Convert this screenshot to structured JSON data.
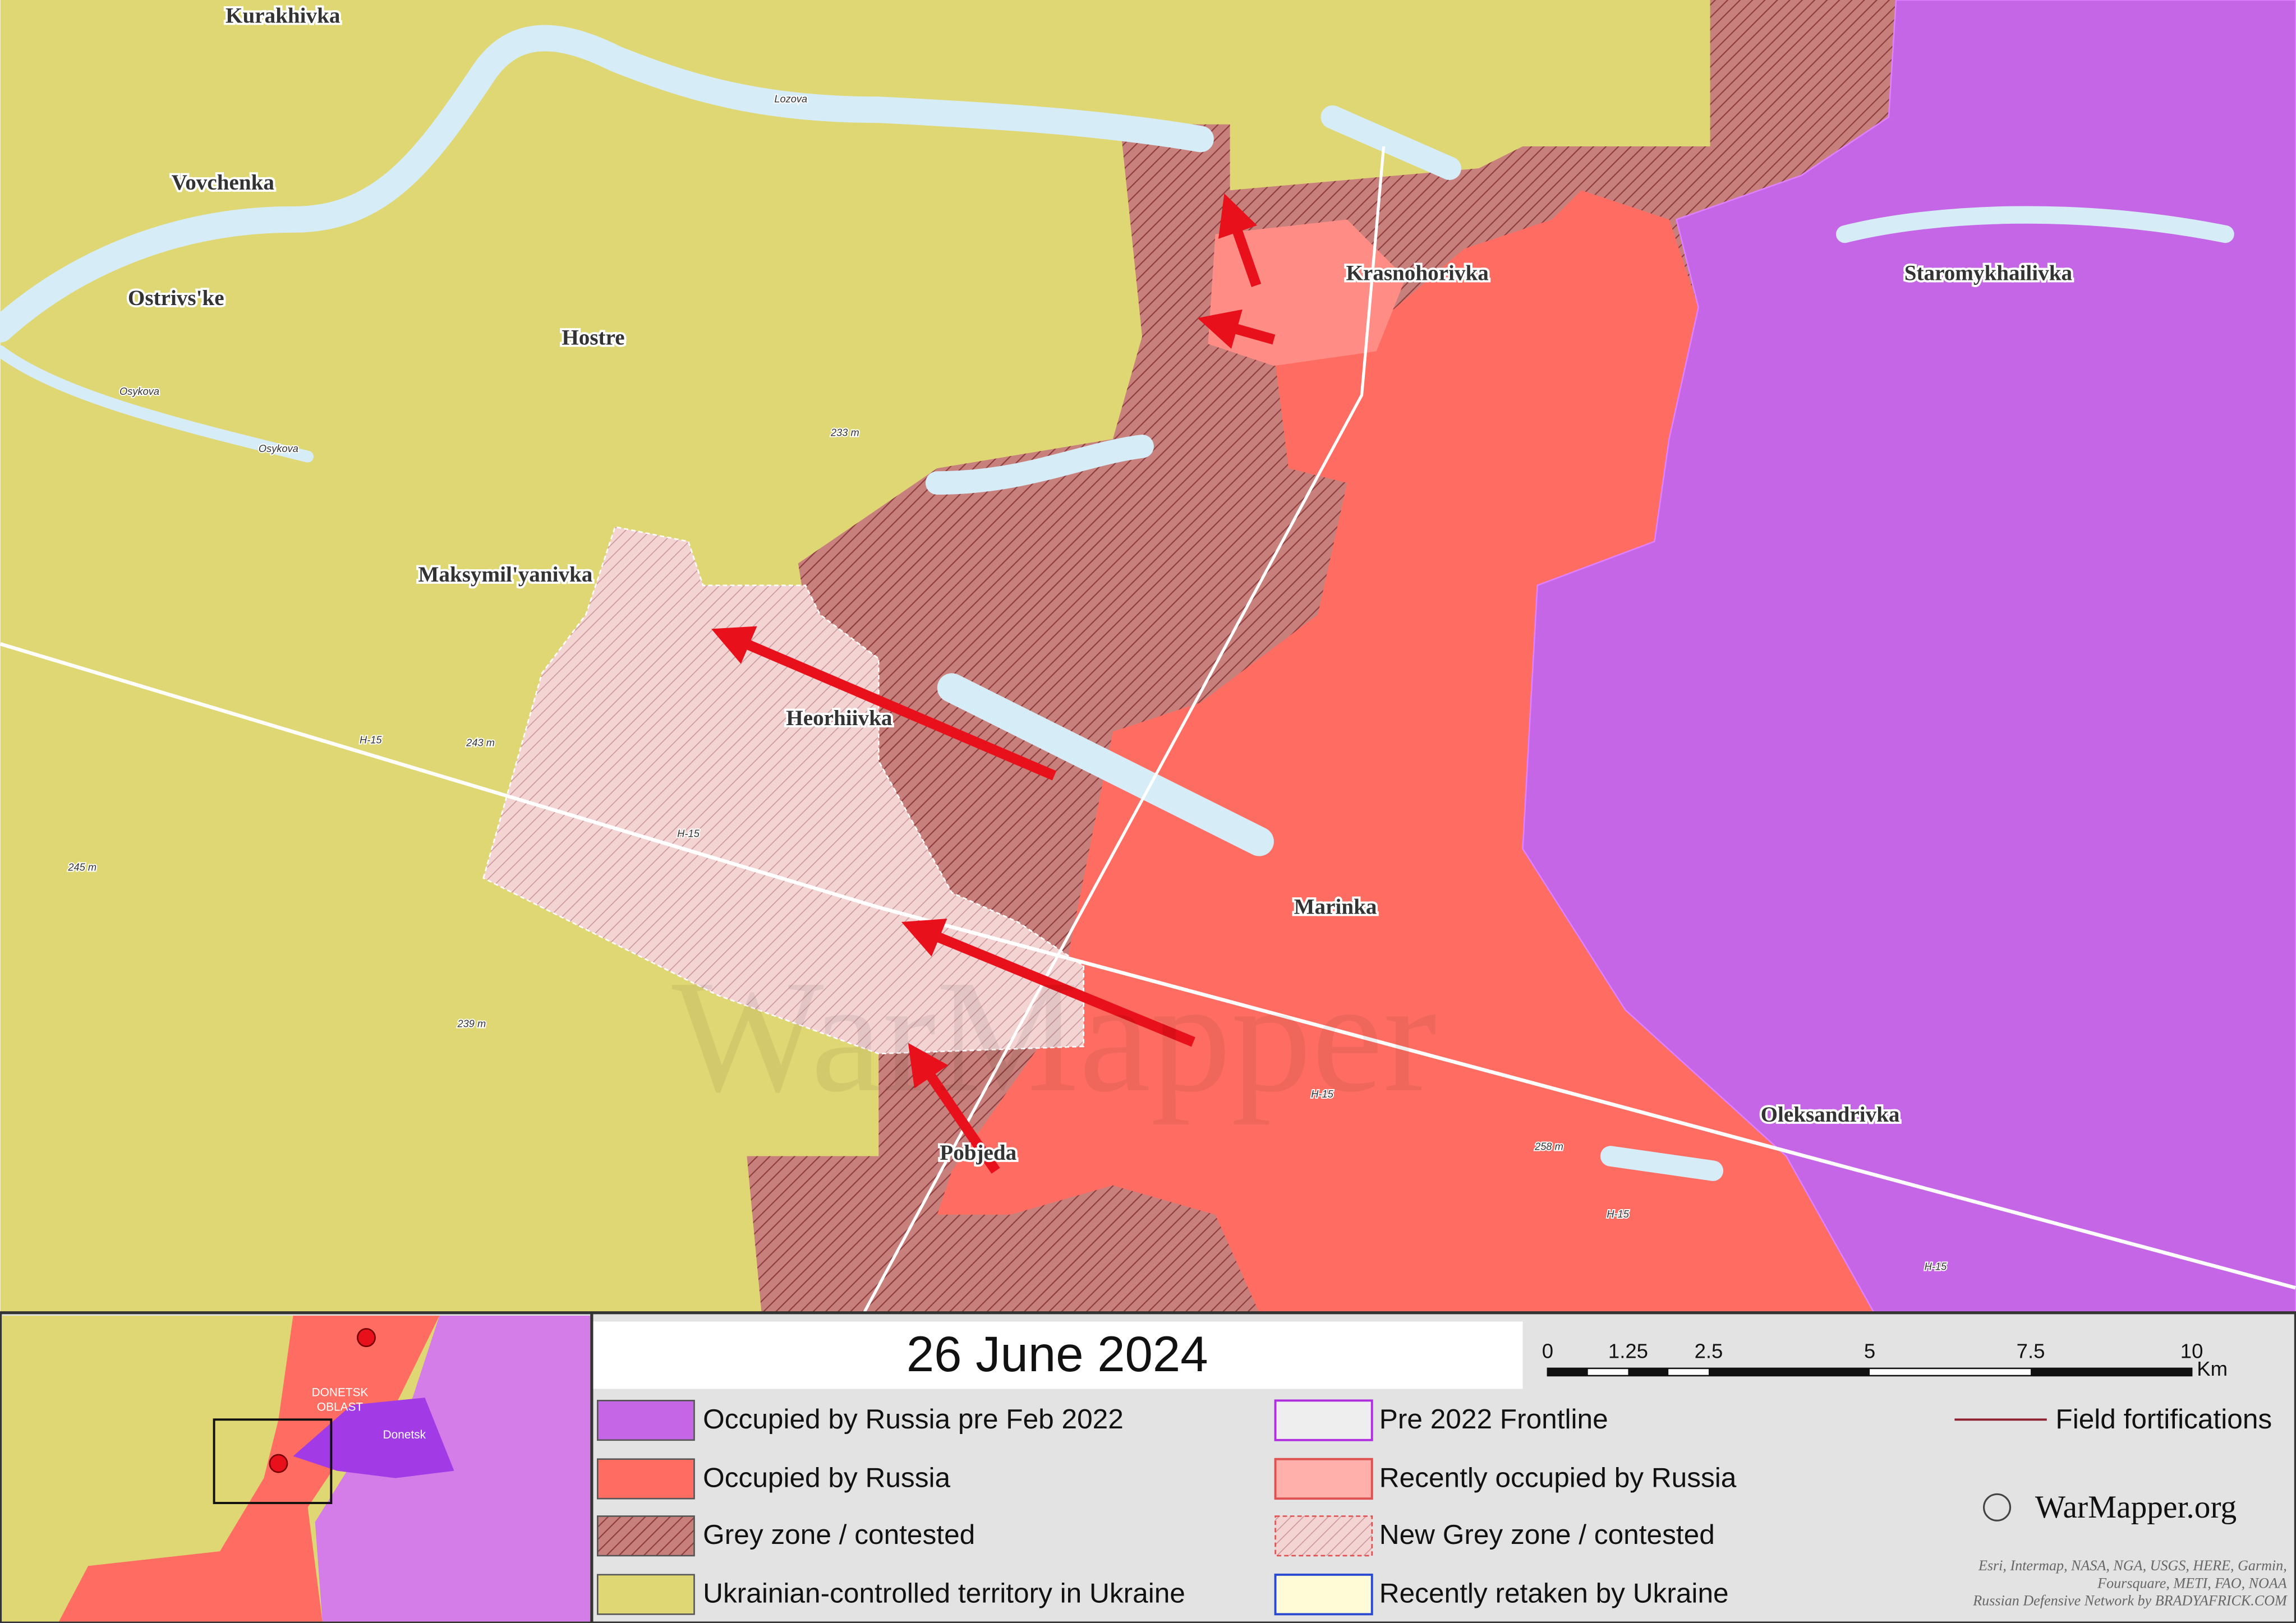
{
  "map": {
    "places": [
      "Kurakhivka",
      "Vovchenka",
      "Ostrivs'ke",
      "Hostre",
      "Maksymil'yanivka",
      "Heorhiivka",
      "Krasnohorivka",
      "Staromykhailivka",
      "Marinka",
      "Oleksandrivka",
      "Pobjeda"
    ],
    "roads": [
      "H-15",
      "H-15",
      "H-15",
      "H-15",
      "H-15"
    ],
    "elevations": [
      "233 m",
      "243 m",
      "245 m",
      "239 m",
      "258 m"
    ],
    "rivers": [
      "Lozova",
      "Osykova",
      "Osykova"
    ],
    "watermark": "WarMapper"
  },
  "legend": {
    "date": "26 June 2024",
    "scale": {
      "ticks": [
        "0",
        "1.25",
        "2.5",
        "5",
        "7.5",
        "10"
      ],
      "unit": "Km"
    },
    "items": [
      "Occupied by Russia pre Feb 2022",
      "Occupied by Russia",
      "Grey zone / contested",
      "Ukrainian-controlled territory in Ukraine",
      "Pre 2022 Frontline",
      "Recently occupied by Russia",
      "New Grey zone / contested",
      "Recently retaken by Ukraine",
      "Field fortifications"
    ],
    "brand": "WarMapper.org",
    "attribution": [
      "Esri, Intermap, NASA, NGA, USGS, HERE, Garmin,",
      "Foursquare, METI, FAO, NOAA",
      "Russian Defensive Network by BRADYAFRICK.COM"
    ],
    "inset": [
      "DONETSK",
      "OBLAST",
      "Donetsk"
    ]
  }
}
